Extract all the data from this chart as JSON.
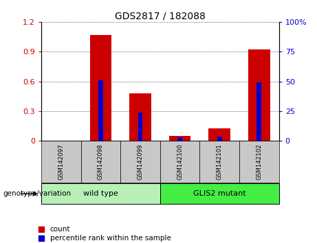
{
  "title": "GDS2817 / 182088",
  "categories": [
    "GSM142097",
    "GSM142098",
    "GSM142099",
    "GSM142100",
    "GSM142101",
    "GSM142102"
  ],
  "red_values": [
    0.0,
    1.07,
    0.48,
    0.05,
    0.13,
    0.92
  ],
  "blue_pct_values": [
    0.0,
    51.0,
    24.0,
    3.0,
    3.5,
    49.0
  ],
  "ylim_left": [
    0,
    1.2
  ],
  "ylim_right": [
    0,
    100
  ],
  "yticks_left": [
    0,
    0.3,
    0.6,
    0.9,
    1.2
  ],
  "ytick_labels_left": [
    "0",
    "0.3",
    "0.6",
    "0.9",
    "1.2"
  ],
  "yticks_right": [
    0,
    25,
    50,
    75,
    100
  ],
  "ytick_labels_right": [
    "0",
    "25",
    "50",
    "75",
    "100%"
  ],
  "group_labels": [
    "wild type",
    "GLIS2 mutant"
  ],
  "group_colors": [
    "#b8f0b8",
    "#44ee44"
  ],
  "bar_color_red": "#cc0000",
  "bar_color_blue": "#0000cc",
  "cell_color": "#c8c8c8",
  "genotype_label": "genotype/variation",
  "legend_items": [
    "count",
    "percentile rank within the sample"
  ],
  "red_bar_width": 0.55,
  "blue_bar_width": 0.12
}
